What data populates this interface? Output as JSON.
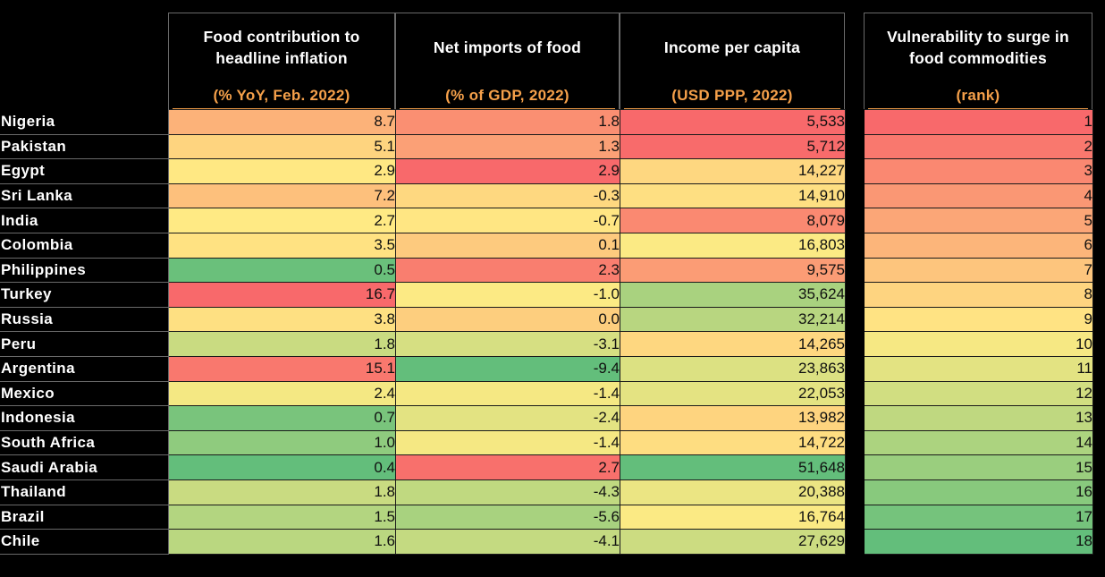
{
  "columns": [
    {
      "title": "Food contribution to headline inflation",
      "unit": "(% YoY, Feb. 2022)"
    },
    {
      "title": "Net imports of food",
      "unit": "(% of GDP, 2022)"
    },
    {
      "title": "Income per capita",
      "unit": "(USD PPP, 2022)"
    },
    {
      "title": "Vulnerability to surge in food commodities",
      "unit": "(rank)"
    }
  ],
  "scale_colors": {
    "low": "#63be7b",
    "mid": "#ffeb84",
    "high": "#f8696b"
  },
  "chart_data": {
    "type": "table",
    "rows": [
      {
        "country": "Nigeria",
        "food_inflation": "8.7",
        "net_imports": "1.8",
        "income": "5,533",
        "rank": "1"
      },
      {
        "country": "Pakistan",
        "food_inflation": "5.1",
        "net_imports": "1.3",
        "income": "5,712",
        "rank": "2"
      },
      {
        "country": "Egypt",
        "food_inflation": "2.9",
        "net_imports": "2.9",
        "income": "14,227",
        "rank": "3"
      },
      {
        "country": "Sri Lanka",
        "food_inflation": "7.2",
        "net_imports": "-0.3",
        "income": "14,910",
        "rank": "4"
      },
      {
        "country": "India",
        "food_inflation": "2.7",
        "net_imports": "-0.7",
        "income": "8,079",
        "rank": "5"
      },
      {
        "country": "Colombia",
        "food_inflation": "3.5",
        "net_imports": "0.1",
        "income": "16,803",
        "rank": "6"
      },
      {
        "country": "Philippines",
        "food_inflation": "0.5",
        "net_imports": "2.3",
        "income": "9,575",
        "rank": "7"
      },
      {
        "country": "Turkey",
        "food_inflation": "16.7",
        "net_imports": "-1.0",
        "income": "35,624",
        "rank": "8"
      },
      {
        "country": "Russia",
        "food_inflation": "3.8",
        "net_imports": "0.0",
        "income": "32,214",
        "rank": "9"
      },
      {
        "country": "Peru",
        "food_inflation": "1.8",
        "net_imports": "-3.1",
        "income": "14,265",
        "rank": "10"
      },
      {
        "country": "Argentina",
        "food_inflation": "15.1",
        "net_imports": "-9.4",
        "income": "23,863",
        "rank": "11"
      },
      {
        "country": "Mexico",
        "food_inflation": "2.4",
        "net_imports": "-1.4",
        "income": "22,053",
        "rank": "12"
      },
      {
        "country": "Indonesia",
        "food_inflation": "0.7",
        "net_imports": "-2.4",
        "income": "13,982",
        "rank": "13"
      },
      {
        "country": "South Africa",
        "food_inflation": "1.0",
        "net_imports": "-1.4",
        "income": "14,722",
        "rank": "14"
      },
      {
        "country": "Saudi Arabia",
        "food_inflation": "0.4",
        "net_imports": "2.7",
        "income": "51,648",
        "rank": "15"
      },
      {
        "country": "Thailand",
        "food_inflation": "1.8",
        "net_imports": "-4.3",
        "income": "20,388",
        "rank": "16"
      },
      {
        "country": "Brazil",
        "food_inflation": "1.5",
        "net_imports": "-5.6",
        "income": "16,764",
        "rank": "17"
      },
      {
        "country": "Chile",
        "food_inflation": "1.6",
        "net_imports": "-4.1",
        "income": "27,629",
        "rank": "18"
      }
    ]
  }
}
